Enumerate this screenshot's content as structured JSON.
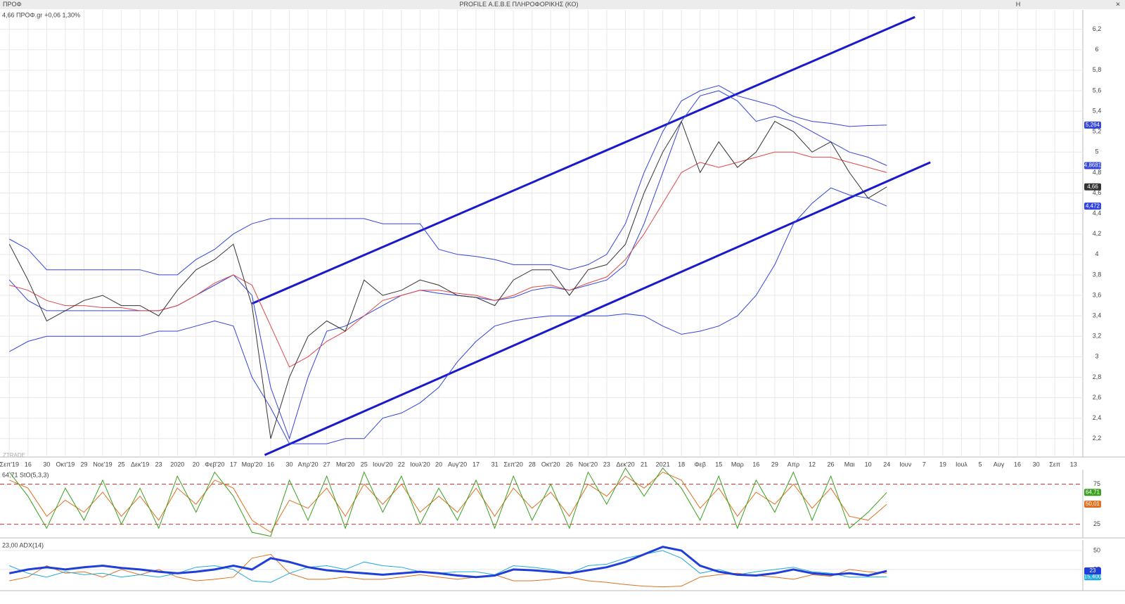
{
  "header": {
    "tab": "ΠΡΟΦ",
    "title": "PROFILE Α.Ε.Β.Ε ΠΛΗΡΟΦΟΡΙΚΗΣ (ΚΟ)",
    "menu": "H",
    "watermark": "ZTRADE"
  },
  "chart_data": [
    {
      "type": "line",
      "title": "4,66 ΠΡΟΦ.gr",
      "change": "+0,06 1,30%",
      "categories": [
        "Σεπ'19",
        "16",
        "30",
        "Οκτ'19",
        "29",
        "Νοε'19",
        "25",
        "Δεκ'19",
        "23",
        "2020",
        "20",
        "Φεβ'20",
        "17",
        "Μαρ'20",
        "16",
        "30",
        "Απρ'20",
        "27",
        "Μαι'20",
        "25",
        "Ιουν'20",
        "22",
        "Ιουλ'20",
        "20",
        "Αυγ'20",
        "17",
        "31",
        "Σεπ'20",
        "28",
        "Οκτ'20",
        "26",
        "Νοε'20",
        "23",
        "Δεκ'20",
        "21",
        "2021",
        "18",
        "Φεβ",
        "15",
        "Μαρ",
        "16",
        "29",
        "Απρ",
        "12",
        "26",
        "Μαι",
        "10",
        "24",
        "Ιουν",
        "7",
        "19",
        "Ιουλ",
        "5",
        "Αυγ",
        "16",
        "30",
        "Σεπ",
        "13"
      ],
      "ylim": [
        2.02,
        6.39
      ],
      "yticks": [
        {
          "value": 2.2,
          "label": "2,2"
        },
        {
          "value": 2.4,
          "label": "2,4"
        },
        {
          "value": 2.6,
          "label": "2,6"
        },
        {
          "value": 2.8,
          "label": "2,8"
        },
        3,
        {
          "value": 3.2,
          "label": "3,2"
        },
        {
          "value": 3.4,
          "label": "3,4"
        },
        {
          "value": 3.6,
          "label": "3,6"
        },
        {
          "value": 3.8,
          "label": "3,8"
        },
        4,
        {
          "value": 4.2,
          "label": "4,2"
        },
        {
          "value": 4.4,
          "label": "4,4"
        },
        {
          "value": 4.6,
          "label": "4,6"
        },
        {
          "value": 4.8,
          "label": "4,8"
        },
        5,
        {
          "value": 5.2,
          "label": "5,2"
        },
        {
          "value": 5.4,
          "label": "5,4"
        },
        {
          "value": 5.6,
          "label": "5,6"
        },
        {
          "value": 5.8,
          "label": "5,8"
        },
        6,
        {
          "value": 6.2,
          "label": "6,2"
        }
      ],
      "grid": true,
      "grid_color": "#e8e8e8",
      "series": [
        {
          "color": "#3344dd",
          "values": [
            4.15,
            4.05,
            3.85,
            3.85,
            3.85,
            3.85,
            3.85,
            3.85,
            3.8,
            3.8,
            3.95,
            4.05,
            4.2,
            4.3,
            4.35,
            4.35,
            4.35,
            4.35,
            4.35,
            4.35,
            4.3,
            4.3,
            4.3,
            4.05,
            4.0,
            3.98,
            3.95,
            3.9,
            3.9,
            3.9,
            3.85,
            3.9,
            4.0,
            4.3,
            4.8,
            5.2,
            5.5,
            5.6,
            5.65,
            5.55,
            5.5,
            5.45,
            5.35,
            5.3,
            5.28,
            5.25,
            5.26,
            5.264,
            null,
            null,
            null,
            null,
            null,
            null,
            null,
            null,
            null,
            null
          ],
          "last_label": "5,264"
        },
        {
          "color": "#3344dd",
          "values": [
            3.75,
            3.55,
            3.45,
            3.45,
            3.45,
            3.45,
            3.45,
            3.45,
            3.45,
            3.5,
            3.6,
            3.7,
            3.8,
            3.6,
            2.7,
            2.2,
            2.8,
            3.25,
            3.3,
            3.4,
            3.5,
            3.6,
            3.65,
            3.62,
            3.6,
            3.58,
            3.55,
            3.58,
            3.65,
            3.68,
            3.65,
            3.7,
            3.75,
            3.9,
            4.3,
            4.8,
            5.3,
            5.55,
            5.6,
            5.5,
            5.3,
            5.35,
            5.3,
            5.2,
            5.1,
            5.0,
            4.95,
            4.8681,
            null,
            null,
            null,
            null,
            null,
            null,
            null,
            null,
            null,
            null
          ],
          "last_label": "4,8681"
        },
        {
          "color": "#3344dd",
          "values": [
            3.05,
            3.15,
            3.2,
            3.2,
            3.2,
            3.2,
            3.2,
            3.2,
            3.25,
            3.25,
            3.3,
            3.35,
            3.3,
            2.8,
            2.5,
            2.15,
            2.15,
            2.15,
            2.2,
            2.2,
            2.4,
            2.45,
            2.55,
            2.7,
            2.95,
            3.15,
            3.3,
            3.35,
            3.38,
            3.4,
            3.4,
            3.4,
            3.4,
            3.42,
            3.4,
            3.3,
            3.22,
            3.25,
            3.3,
            3.4,
            3.6,
            3.9,
            4.3,
            4.5,
            4.65,
            4.58,
            4.55,
            4.472,
            null,
            null,
            null,
            null,
            null,
            null,
            null,
            null,
            null,
            null
          ],
          "last_label": "4,472"
        },
        {
          "color": "#e04848",
          "values": [
            3.7,
            3.65,
            3.55,
            3.5,
            3.5,
            3.48,
            3.48,
            3.45,
            3.45,
            3.5,
            3.6,
            3.72,
            3.8,
            3.7,
            3.3,
            2.9,
            3.0,
            3.15,
            3.25,
            3.4,
            3.55,
            3.6,
            3.65,
            3.65,
            3.62,
            3.6,
            3.55,
            3.6,
            3.68,
            3.7,
            3.65,
            3.72,
            3.78,
            3.95,
            4.2,
            4.5,
            4.8,
            4.9,
            4.85,
            4.9,
            4.95,
            5.0,
            5.0,
            4.95,
            4.95,
            4.9,
            4.85,
            4.8,
            null,
            null,
            null,
            null,
            null,
            null,
            null,
            null,
            null,
            null
          ]
        },
        {
          "color": "#333333",
          "values": [
            4.1,
            3.75,
            3.35,
            3.45,
            3.55,
            3.6,
            3.5,
            3.5,
            3.4,
            3.65,
            3.85,
            3.95,
            4.1,
            3.5,
            2.2,
            2.8,
            3.2,
            3.35,
            3.25,
            3.75,
            3.6,
            3.65,
            3.75,
            3.7,
            3.6,
            3.58,
            3.5,
            3.75,
            3.85,
            3.85,
            3.6,
            3.85,
            3.9,
            4.1,
            4.6,
            5.0,
            5.3,
            4.8,
            5.1,
            4.85,
            5.0,
            5.3,
            5.2,
            5.0,
            5.1,
            4.8,
            4.55,
            4.66,
            null,
            null,
            null,
            null,
            null,
            null,
            null,
            null,
            null,
            null
          ],
          "last_label": "4,66"
        }
      ],
      "channel": {
        "color": "#1a1acc",
        "upper": [
          3.52,
          6.32
        ],
        "lower": [
          2.04,
          4.9
        ]
      }
    },
    {
      "type": "line",
      "title": "64,71 StO(5,3,3)",
      "ylim": [
        8,
        93
      ],
      "yticks": [
        25,
        75
      ],
      "grid": true,
      "grid_color": "#e03030",
      "grid_dash": true,
      "series": [
        {
          "color": "#e07020",
          "values": [
            80,
            70,
            35,
            55,
            40,
            65,
            35,
            60,
            30,
            70,
            50,
            80,
            70,
            30,
            15,
            55,
            45,
            70,
            35,
            75,
            50,
            75,
            40,
            60,
            40,
            70,
            35,
            70,
            45,
            65,
            35,
            75,
            60,
            85,
            70,
            90,
            80,
            45,
            70,
            35,
            65,
            50,
            75,
            45,
            70,
            35,
            30,
            50.01
          ],
          "last_label": "50,01"
        },
        {
          "color": "#3aa020",
          "values": [
            90,
            60,
            20,
            70,
            30,
            80,
            25,
            70,
            20,
            85,
            40,
            90,
            60,
            15,
            10,
            80,
            30,
            85,
            20,
            90,
            40,
            85,
            25,
            70,
            30,
            80,
            20,
            85,
            30,
            75,
            20,
            90,
            50,
            95,
            60,
            95,
            70,
            30,
            85,
            20,
            80,
            40,
            90,
            30,
            85,
            20,
            40,
            64.71
          ],
          "last_label": "64,71"
        }
      ]
    },
    {
      "type": "line",
      "title": "23,00 ADX(14)",
      "ylim": [
        -3,
        64
      ],
      "yticks": [
        25,
        50
      ],
      "grid": true,
      "grid_color": "#e8e8e8",
      "series": [
        {
          "color": "#e07020",
          "values": [
            10,
            15,
            30,
            20,
            22,
            15,
            25,
            18,
            25,
            15,
            10,
            12,
            15,
            40,
            45,
            20,
            12,
            12,
            15,
            12,
            12,
            15,
            18,
            15,
            12,
            15,
            18,
            10,
            10,
            12,
            15,
            10,
            8,
            5,
            3,
            2,
            3,
            15,
            18,
            20,
            17,
            15,
            12,
            18,
            16,
            25,
            22,
            20
          ]
        },
        {
          "color": "#22aadd",
          "values": [
            30,
            20,
            15,
            22,
            18,
            20,
            15,
            18,
            15,
            20,
            28,
            30,
            25,
            10,
            8,
            20,
            28,
            30,
            25,
            35,
            30,
            28,
            22,
            20,
            22,
            22,
            18,
            30,
            28,
            25,
            20,
            30,
            32,
            40,
            45,
            50,
            40,
            20,
            25,
            18,
            22,
            25,
            28,
            22,
            20,
            15,
            15,
            15.4
          ],
          "last_label": "15,400"
        },
        {
          "color": "#1f3fd8",
          "width": 3,
          "values": [
            20,
            25,
            28,
            25,
            28,
            30,
            27,
            25,
            22,
            20,
            22,
            25,
            30,
            25,
            40,
            35,
            28,
            24,
            22,
            20,
            18,
            20,
            22,
            20,
            17,
            15,
            17,
            25,
            24,
            22,
            20,
            24,
            28,
            35,
            45,
            55,
            50,
            30,
            22,
            18,
            17,
            20,
            25,
            20,
            18,
            20,
            17,
            23
          ],
          "last_label": "23"
        }
      ]
    }
  ]
}
